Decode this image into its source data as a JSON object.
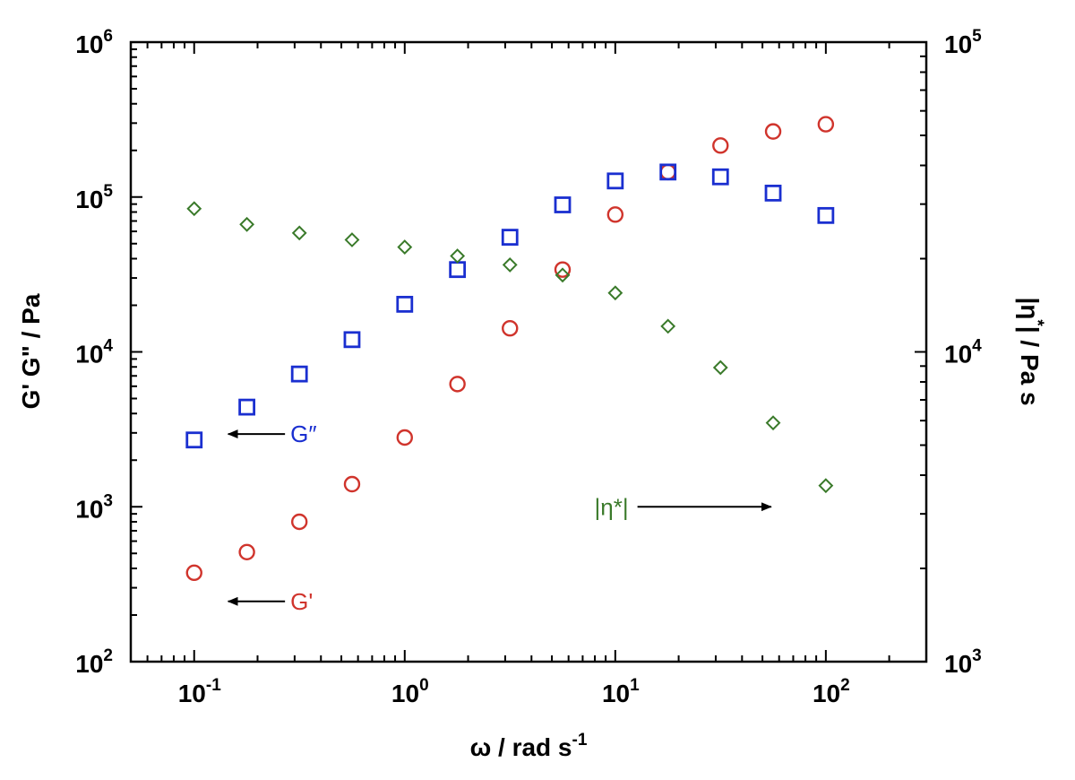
{
  "chart_data": {
    "type": "scatter",
    "x_scale": "log",
    "y_scale": "log",
    "xlim": [
      0.05,
      300
    ],
    "ylim": [
      100,
      1000000
    ],
    "y2lim": [
      1000,
      100000
    ],
    "xlabel": "ω / rad s",
    "xlabel_exp": "-1",
    "ylabel": "G' G\" / Pa",
    "y2label_pre": "|η",
    "y2label_sup": "*",
    "y2label_post": "| / Pa s",
    "x_ticks": [
      {
        "value": 0.1,
        "base": "10",
        "exp": "-1"
      },
      {
        "value": 1,
        "base": "10",
        "exp": "0"
      },
      {
        "value": 10,
        "base": "10",
        "exp": "1"
      },
      {
        "value": 100,
        "base": "10",
        "exp": "2"
      }
    ],
    "y_ticks": [
      {
        "value": 100,
        "base": "10",
        "exp": "2"
      },
      {
        "value": 1000,
        "base": "10",
        "exp": "3"
      },
      {
        "value": 10000,
        "base": "10",
        "exp": "4"
      },
      {
        "value": 100000,
        "base": "10",
        "exp": "5"
      },
      {
        "value": 1000000,
        "base": "10",
        "exp": "6"
      }
    ],
    "y2_ticks": [
      {
        "value": 1000,
        "base": "10",
        "exp": "3"
      },
      {
        "value": 10000,
        "base": "10",
        "exp": "4"
      },
      {
        "value": 100000,
        "base": "10",
        "exp": "5"
      }
    ],
    "x": [
      0.1,
      0.178,
      0.316,
      0.562,
      1,
      1.78,
      3.16,
      5.62,
      10,
      17.8,
      31.6,
      56.2,
      100
    ],
    "series": [
      {
        "marker": "circle",
        "color": "#d0342c",
        "axis": "left",
        "values": [
          375,
          510,
          800,
          1400,
          2800,
          6200,
          14200,
          34000,
          77000,
          145000,
          215000,
          265000,
          295000
        ]
      },
      {
        "marker": "square",
        "color": "#1a2fd0",
        "axis": "left",
        "values": [
          2700,
          4400,
          7200,
          12000,
          20300,
          34000,
          55000,
          89000,
          127000,
          145000,
          135000,
          106000,
          76000
        ]
      },
      {
        "marker": "diamond",
        "color": "#3a7a2a",
        "axis": "right",
        "values": [
          29000,
          25800,
          24200,
          23000,
          21800,
          20400,
          19100,
          17700,
          15500,
          12100,
          8900,
          5900,
          3700
        ]
      }
    ],
    "annotations": [
      {
        "text": "G″",
        "color": "#1a2fd0",
        "x": 0.27,
        "y": 2950,
        "arrow_to": [
          0.145,
          2950
        ],
        "axis": "left"
      },
      {
        "text": "G'",
        "color": "#d0342c",
        "x": 0.27,
        "y": 245,
        "arrow_to": [
          0.145,
          245
        ],
        "axis": "left"
      },
      {
        "text": "|η*|",
        "color": "#3a7a2a",
        "x": 12.5,
        "y": 1000,
        "arrow_to": [
          55,
          1000
        ],
        "axis": "left"
      }
    ],
    "grid": false
  }
}
